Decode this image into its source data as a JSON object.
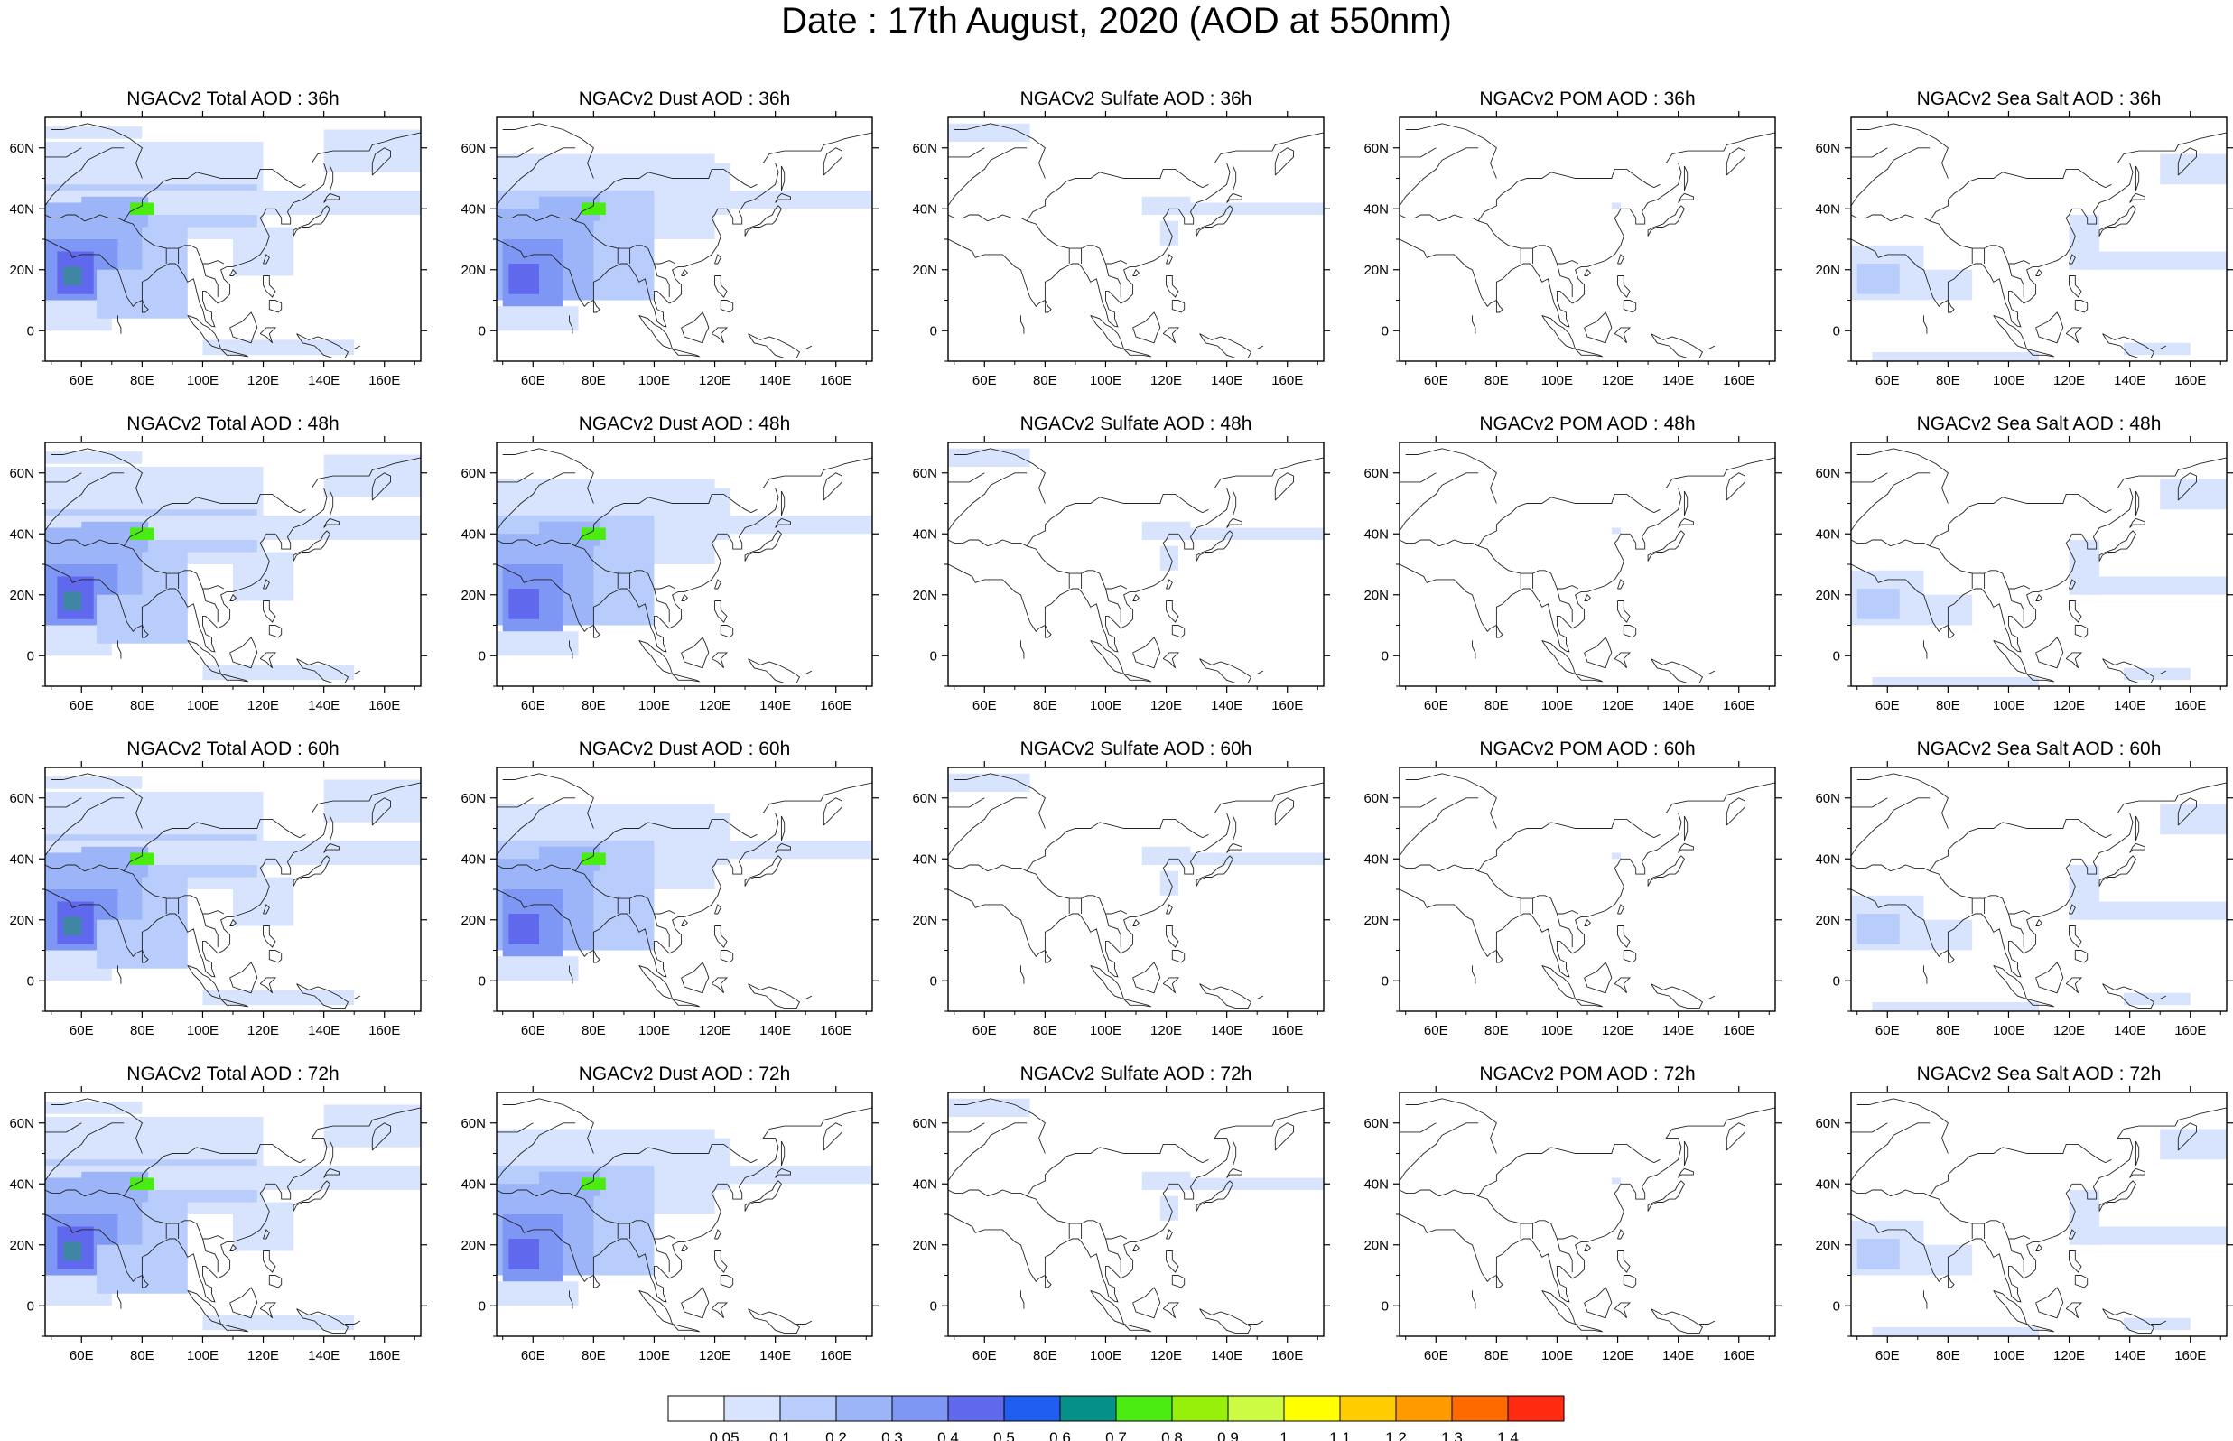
{
  "title": "Date : 17th August, 2020 (AOD at 550nm)",
  "axes": {
    "lon_ticks": [
      "60E",
      "80E",
      "100E",
      "120E",
      "140E",
      "160E"
    ],
    "lat_ticks": [
      "60N",
      "40N",
      "20N",
      "0"
    ]
  },
  "panels": [
    {
      "title": "NGACv2 Total AOD : 36h",
      "species": "total",
      "lead": "36h"
    },
    {
      "title": "NGACv2 Dust AOD : 36h",
      "species": "dust",
      "lead": "36h"
    },
    {
      "title": "NGACv2 Sulfate AOD : 36h",
      "species": "sulfate",
      "lead": "36h"
    },
    {
      "title": "NGACv2 POM AOD : 36h",
      "species": "pom",
      "lead": "36h"
    },
    {
      "title": "NGACv2 Sea Salt AOD : 36h",
      "species": "seasalt",
      "lead": "36h"
    },
    {
      "title": "NGACv2 Total AOD : 48h",
      "species": "total",
      "lead": "48h"
    },
    {
      "title": "NGACv2 Dust AOD : 48h",
      "species": "dust",
      "lead": "48h"
    },
    {
      "title": "NGACv2 Sulfate AOD : 48h",
      "species": "sulfate",
      "lead": "48h"
    },
    {
      "title": "NGACv2 POM AOD : 48h",
      "species": "pom",
      "lead": "48h"
    },
    {
      "title": "NGACv2 Sea Salt AOD : 48h",
      "species": "seasalt",
      "lead": "48h"
    },
    {
      "title": "NGACv2 Total AOD : 60h",
      "species": "total",
      "lead": "60h"
    },
    {
      "title": "NGACv2 Dust AOD : 60h",
      "species": "dust",
      "lead": "60h"
    },
    {
      "title": "NGACv2 Sulfate AOD : 60h",
      "species": "sulfate",
      "lead": "60h"
    },
    {
      "title": "NGACv2 POM AOD : 60h",
      "species": "pom",
      "lead": "60h"
    },
    {
      "title": "NGACv2 Sea Salt AOD : 60h",
      "species": "seasalt",
      "lead": "60h"
    },
    {
      "title": "NGACv2 Total AOD : 72h",
      "species": "total",
      "lead": "72h"
    },
    {
      "title": "NGACv2 Dust AOD : 72h",
      "species": "dust",
      "lead": "72h"
    },
    {
      "title": "NGACv2 Sulfate AOD : 72h",
      "species": "sulfate",
      "lead": "72h"
    },
    {
      "title": "NGACv2 POM AOD : 72h",
      "species": "pom",
      "lead": "72h"
    },
    {
      "title": "NGACv2 Sea Salt  AOD : 72h",
      "species": "seasalt",
      "lead": "72h"
    }
  ],
  "colorbar": {
    "labels": [
      "0.05",
      "0.1",
      "0.2",
      "0.3",
      "0.4",
      "0.5",
      "0.6",
      "0.7",
      "0.8",
      "0.9",
      "1",
      "1.1",
      "1.2",
      "1.3",
      "1.4"
    ],
    "colors": [
      "#ffffff",
      "#d8e4fd",
      "#b8cdfb",
      "#9bb5f8",
      "#7e96f4",
      "#6068ee",
      "#1f5ef0",
      "#06908a",
      "#4aec12",
      "#96f00a",
      "#cdfb43",
      "#ffff00",
      "#ffcc00",
      "#ff9a00",
      "#ff6a00",
      "#ff2a10"
    ]
  }
}
